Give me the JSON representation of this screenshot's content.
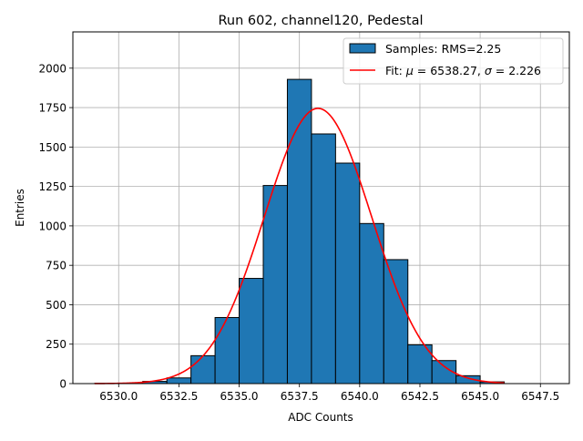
{
  "chart_data": {
    "type": "bar",
    "title": "Run 602, channel120, Pedestal",
    "xlabel": "ADC Counts",
    "ylabel": "Entries",
    "xlim": [
      6528.1,
      6548.7
    ],
    "ylim": [
      0,
      2230
    ],
    "grid": true,
    "legend_position": "top-right",
    "x_ticks": [
      "6530.0",
      "6532.5",
      "6535.0",
      "6537.5",
      "6540.0",
      "6542.5",
      "6545.0",
      "6547.5"
    ],
    "y_ticks": [
      "0",
      "250",
      "500",
      "750",
      "1000",
      "1250",
      "1500",
      "1750",
      "2000"
    ],
    "bin_width": 1,
    "bin_left_edges": [
      6529,
      6530,
      6531,
      6532,
      6533,
      6534,
      6535,
      6536,
      6537,
      6538,
      6539,
      6540,
      6541,
      6542,
      6543,
      6544,
      6545
    ],
    "values": [
      1,
      3,
      14,
      36,
      177,
      419,
      667,
      1256,
      1929,
      1583,
      1398,
      1015,
      786,
      246,
      146,
      50,
      11
    ],
    "series": [
      {
        "name": "Samples: RMS=2.25",
        "kind": "histogram",
        "color": "#1f77b4"
      },
      {
        "name": "Fit: μ = 6538.27, σ = 2.226",
        "kind": "gaussian",
        "color": "#ff0000",
        "mu": 6538.27,
        "sigma": 2.226,
        "amplitude": 1745,
        "x_range": [
          6529,
          6546
        ]
      }
    ],
    "legend": {
      "samples_label": "Samples: RMS=2.25",
      "fit_label_prefix": "Fit: ",
      "fit_mu_symbol": "μ",
      "fit_mu_text": " = 6538.27, ",
      "fit_sigma_symbol": "σ",
      "fit_sigma_text": " = 2.226"
    }
  }
}
